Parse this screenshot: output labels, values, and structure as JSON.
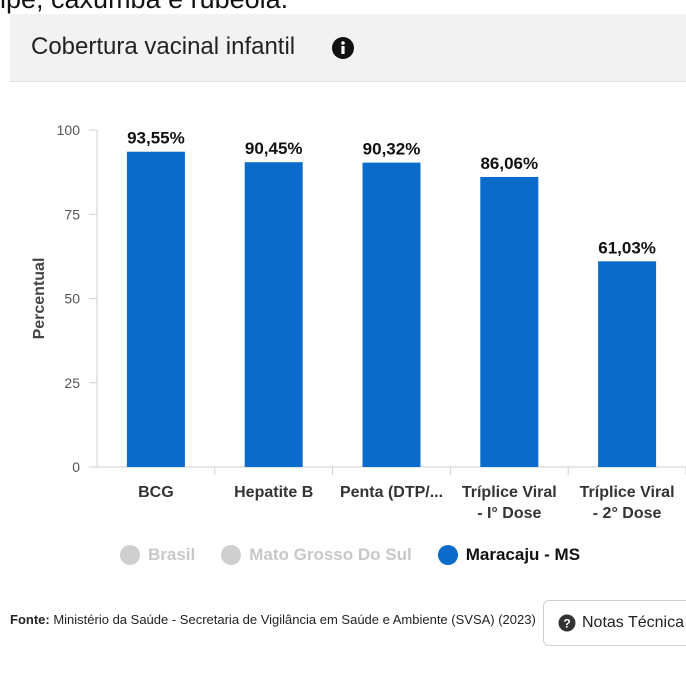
{
  "page": {
    "caption_fragment": "ipe, caxumba e rubéola."
  },
  "header": {
    "title": "Cobertura vacinal infantil",
    "info_icon": "info-circle-icon"
  },
  "chart_data": {
    "type": "bar",
    "ylabel": "Percentual",
    "ylim": [
      0,
      100
    ],
    "yticks": [
      "0",
      "25",
      "50",
      "75",
      "100"
    ],
    "categories": [
      [
        "BCG"
      ],
      [
        "Hepatite B"
      ],
      [
        "Penta (DTP/..."
      ],
      [
        "Tríplice Viral",
        "- I° Dose"
      ],
      [
        "Tríplice Viral",
        "- 2° Dose"
      ]
    ],
    "series": [
      {
        "name": "Maracaju - MS",
        "color": "#0b6bcb",
        "values": [
          93.55,
          90.45,
          90.32,
          86.06,
          61.03
        ],
        "labels": [
          "93,55%",
          "90,45%",
          "90,32%",
          "86,06%",
          "61,03%"
        ]
      }
    ],
    "grid": false,
    "legend_position": "bottom"
  },
  "legend": [
    {
      "name": "Brasil",
      "color": "#cfcfcf",
      "text_color": "#c8c8c8"
    },
    {
      "name": "Mato Grosso Do Sul",
      "color": "#cfcfcf",
      "text_color": "#c8c8c8"
    },
    {
      "name": "Maracaju - MS",
      "color": "#0b6bcb",
      "text_color": "#111111"
    }
  ],
  "footer": {
    "source_label": "Fonte:",
    "source_text": "Ministério da Saúde - Secretaria de Vigilância em Saúde e Ambiente (SVSA) (2023)",
    "notes_button": "Notas Técnica",
    "notes_icon": "question-circle-icon"
  }
}
